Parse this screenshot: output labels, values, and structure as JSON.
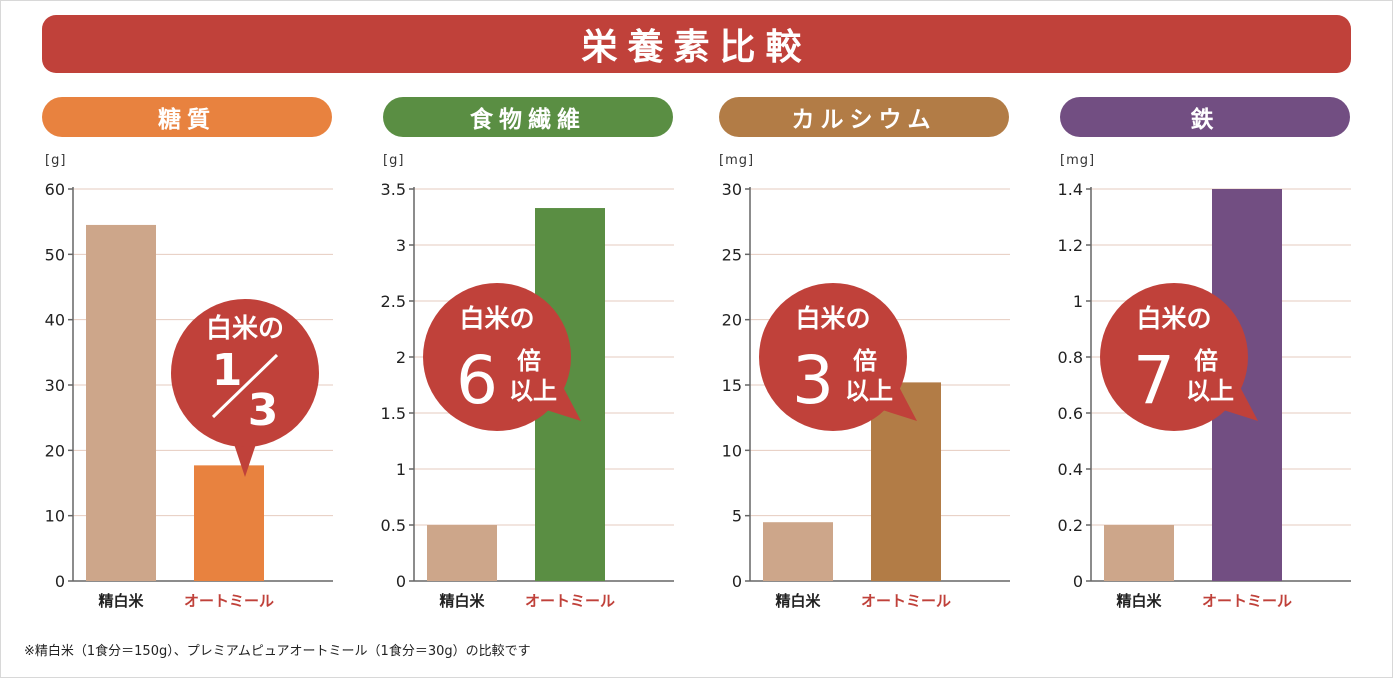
{
  "title": "栄養素比較",
  "footnote": "※精白米（1食分＝150g）、プレミアムピュアオートミール（1食分＝30g）の比較です",
  "colors": {
    "title": "#c0413a",
    "bubble": "#c0413a",
    "rice": "#cda68a",
    "oat_label": "#c0413a",
    "rice_label": "#222222",
    "carb": "#e8823f",
    "fiber": "#5a8e43",
    "calcium": "#b27c46",
    "iron": "#724e82"
  },
  "chart_data": [
    {
      "type": "bar",
      "title": "糖質",
      "unit": "[g]",
      "categories": [
        "精白米",
        "オートミール"
      ],
      "values": [
        54.5,
        17.7
      ],
      "ylim": [
        0,
        60
      ],
      "ticks": [
        "0",
        "10",
        "20",
        "30",
        "40",
        "50",
        "60"
      ],
      "annotation": {
        "line1": "白米の",
        "fraction_num": "1",
        "fraction_den": "3"
      }
    },
    {
      "type": "bar",
      "title": "食物繊維",
      "unit": "[g]",
      "categories": [
        "精白米",
        "オートミール"
      ],
      "values": [
        0.5,
        3.33
      ],
      "ylim": [
        0,
        3.5
      ],
      "ticks": [
        "0",
        "0.5",
        "1",
        "1.5",
        "2",
        "2.5",
        "3",
        "3.5"
      ],
      "annotation": {
        "line1": "白米の",
        "big": "6",
        "small1": "倍",
        "small2": "以上"
      }
    },
    {
      "type": "bar",
      "title": "カルシウム",
      "unit": "[mg]",
      "categories": [
        "精白米",
        "オートミール"
      ],
      "values": [
        4.5,
        15.2
      ],
      "ylim": [
        0,
        30
      ],
      "ticks": [
        "0",
        "5",
        "10",
        "15",
        "20",
        "25",
        "30"
      ],
      "annotation": {
        "line1": "白米の",
        "big": "3",
        "small1": "倍",
        "small2": "以上"
      }
    },
    {
      "type": "bar",
      "title": "鉄",
      "unit": "[mg]",
      "categories": [
        "精白米",
        "オートミール"
      ],
      "values": [
        0.2,
        1.4
      ],
      "ylim": [
        0,
        1.4
      ],
      "ticks": [
        "0",
        "0.2",
        "0.4",
        "0.6",
        "0.8",
        "1",
        "1.2",
        "1.4"
      ],
      "annotation": {
        "line1": "白米の",
        "big": "7",
        "small1": "倍",
        "small2": "以上"
      }
    }
  ]
}
